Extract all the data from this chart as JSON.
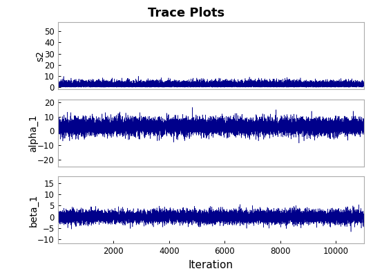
{
  "title": "Trace Plots",
  "xlabel": "Iteration",
  "subplots": [
    {
      "ylabel": "s2",
      "ylim": [
        -2,
        58
      ],
      "yticks": [
        0,
        10,
        20,
        30,
        40,
        50
      ],
      "n_samples": 11000,
      "base_mean": 2.0,
      "base_std": 2.0,
      "abs_value": true,
      "line_color": "#00008B",
      "bg_color": "#FFFFFF"
    },
    {
      "ylabel": "alpha_1",
      "ylim": [
        -25,
        22
      ],
      "yticks": [
        -20,
        -10,
        0,
        10,
        20
      ],
      "n_samples": 11000,
      "base_mean": 3.0,
      "base_std": 3.0,
      "abs_value": false,
      "line_color": "#00008B",
      "bg_color": "#FFFFFF"
    },
    {
      "ylabel": "beta_1",
      "ylim": [
        -12,
        18
      ],
      "yticks": [
        -10,
        -5,
        0,
        5,
        10,
        15
      ],
      "n_samples": 11000,
      "base_mean": 0.0,
      "base_std": 1.5,
      "abs_value": false,
      "line_color": "#00008B",
      "bg_color": "#FFFFFF"
    }
  ],
  "xlim": [
    1,
    11000
  ],
  "xticks": [
    2000,
    4000,
    6000,
    8000,
    10000
  ],
  "title_fontsize": 13,
  "label_fontsize": 10,
  "tick_fontsize": 8.5,
  "bg_color": "#FFFFFF",
  "line_width": 0.4
}
